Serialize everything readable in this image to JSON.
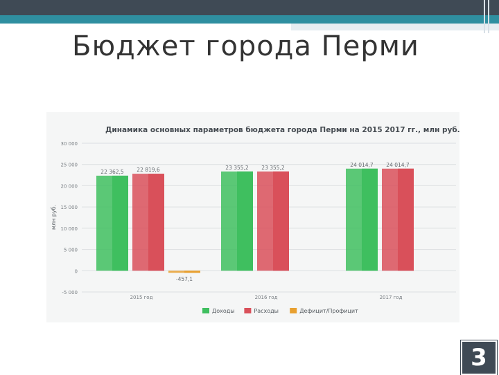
{
  "slide": {
    "title": "Бюджет города Перми",
    "number": "3"
  },
  "chart_data": {
    "type": "bar",
    "title": "Динамика основных параметров бюджета города Перми на 2015 2017 гг., млн руб.",
    "ylabel": "млн руб.",
    "xlabel": "",
    "ylim": [
      -5000,
      30000
    ],
    "yticks": [
      30000,
      25000,
      20000,
      15000,
      10000,
      5000,
      0,
      -5000
    ],
    "ytick_labels": [
      "30 000",
      "25 000",
      "20 000",
      "15 000",
      "10 000",
      "5 000",
      "0",
      "-5 000"
    ],
    "grid": true,
    "legend_position": "bottom",
    "categories": [
      "2015 год",
      "2016 год",
      "2017 год"
    ],
    "series": [
      {
        "name": "Доходы",
        "color": "#3fbf5f",
        "values": [
          22362.5,
          23355.2,
          24014.7
        ],
        "labels": [
          "22 362,5",
          "23 355,2",
          "24 014,7"
        ]
      },
      {
        "name": "Расходы",
        "color": "#d9505a",
        "values": [
          22819.6,
          23355.2,
          24014.7
        ],
        "labels": [
          "22 819,6",
          "23 355,2",
          "24 014,7"
        ]
      },
      {
        "name": "Дефицит/Профицит",
        "color": "#e8a030",
        "values": [
          -457.1,
          0,
          0
        ],
        "labels": [
          "-457,1",
          "",
          ""
        ]
      }
    ]
  }
}
